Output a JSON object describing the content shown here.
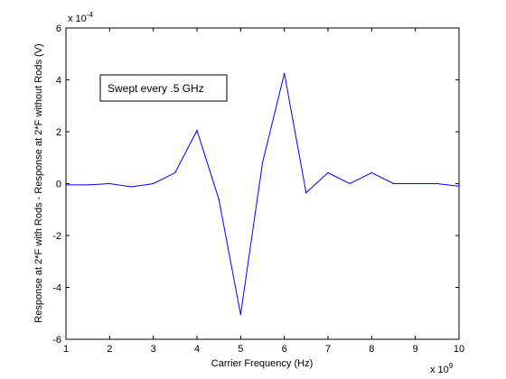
{
  "chart_data": {
    "type": "line",
    "title": "",
    "xlabel": "Carrier Frequency (Hz)",
    "ylabel": "Response at 2*F with Rods - Response at 2*F without Rods (V)",
    "xlim": [
      1,
      10
    ],
    "ylim": [
      -6,
      6
    ],
    "x_tick_labels": [
      "1",
      "2",
      "3",
      "4",
      "5",
      "6",
      "7",
      "8",
      "9",
      "10"
    ],
    "y_tick_labels": [
      "-6",
      "-4",
      "-2",
      "0",
      "2",
      "4",
      "6"
    ],
    "x_exponent": {
      "base": "x 10",
      "power": "9"
    },
    "y_exponent": {
      "base": "x 10",
      "power": "-4"
    },
    "grid": false,
    "series": [
      {
        "color": "#0000ff",
        "x": [
          1,
          1.5,
          2,
          2.5,
          3,
          3.5,
          4,
          4.5,
          5,
          5.5,
          6,
          6.5,
          7,
          7.5,
          8,
          8.5,
          9,
          9.5,
          10
        ],
        "y": [
          -0.05,
          -0.05,
          0.0,
          -0.12,
          0.0,
          0.42,
          2.05,
          -0.6,
          -5.05,
          0.8,
          4.25,
          -0.35,
          0.42,
          0.0,
          0.42,
          0.0,
          0.0,
          0.0,
          -0.1
        ]
      }
    ],
    "annotation": {
      "text": "Swept every .5 GHz"
    }
  }
}
